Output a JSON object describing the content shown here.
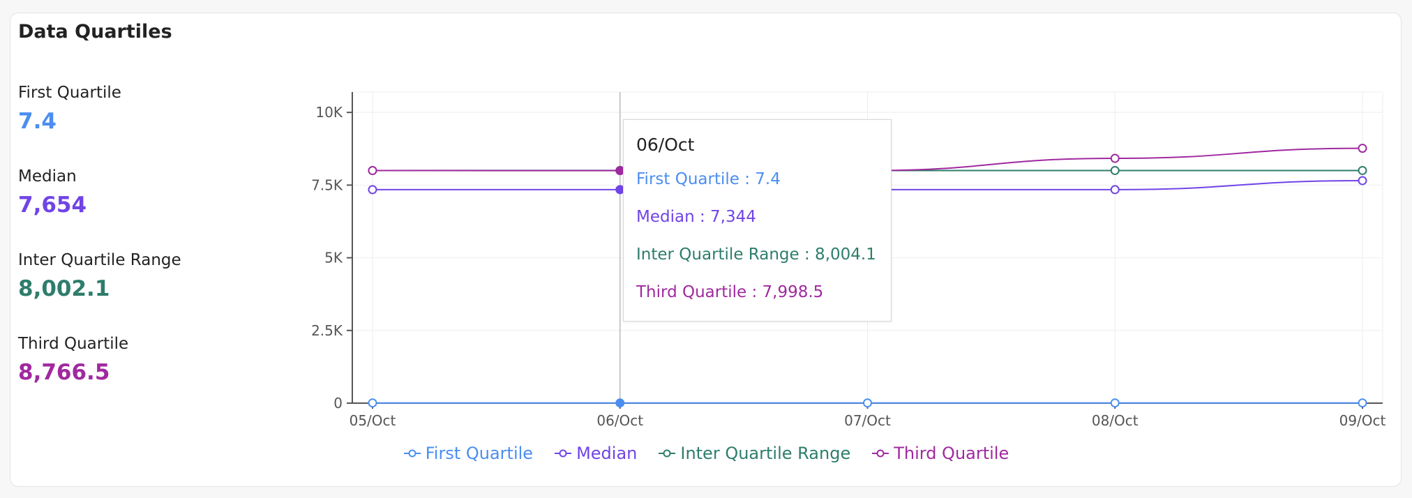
{
  "card": {
    "title": "Data Quartiles"
  },
  "stats": [
    {
      "label": "First Quartile",
      "value": "7.4",
      "color": "#4b8ef0"
    },
    {
      "label": "Median",
      "value": "7,654",
      "color": "#7044e6"
    },
    {
      "label": "Inter Quartile Range",
      "value": "8,002.1",
      "color": "#2e7d6b"
    },
    {
      "label": "Third Quartile",
      "value": "8,766.5",
      "color": "#a0299f"
    }
  ],
  "tooltip": {
    "title": "06/Oct",
    "rows": [
      {
        "text": "First Quartile : 7.4",
        "color": "#4b8ef0"
      },
      {
        "text": "Median : 7,344",
        "color": "#7044e6"
      },
      {
        "text": "Inter Quartile Range : 8,004.1",
        "color": "#2e7d6b"
      },
      {
        "text": "Third Quartile : 7,998.5",
        "color": "#a0299f"
      }
    ]
  },
  "chart_data": {
    "type": "line",
    "x": [
      "05/Oct",
      "06/Oct",
      "07/Oct",
      "08/Oct",
      "09/Oct"
    ],
    "y_ticks": [
      "0",
      "2.5K",
      "5K",
      "7.5K",
      "10K"
    ],
    "y_tick_values": [
      0,
      2500,
      5000,
      7500,
      10000
    ],
    "ylim": [
      0,
      10700
    ],
    "grid": true,
    "legend_position": "bottom",
    "highlighted_x": "06/Oct",
    "series": [
      {
        "name": "First Quartile",
        "color": "#4b8ef0",
        "values": [
          7.4,
          7.4,
          7.4,
          7.4,
          7.4
        ]
      },
      {
        "name": "Median",
        "color": "#7044e6",
        "values": [
          7344,
          7344,
          7344,
          7344,
          7654
        ]
      },
      {
        "name": "Inter Quartile Range",
        "color": "#2e7d6b",
        "values": [
          8002,
          8004.1,
          8002,
          8002,
          8002.1
        ]
      },
      {
        "name": "Third Quartile",
        "color": "#a0299f",
        "values": [
          8000,
          7998.5,
          8000,
          8420,
          8766.5
        ]
      }
    ]
  }
}
